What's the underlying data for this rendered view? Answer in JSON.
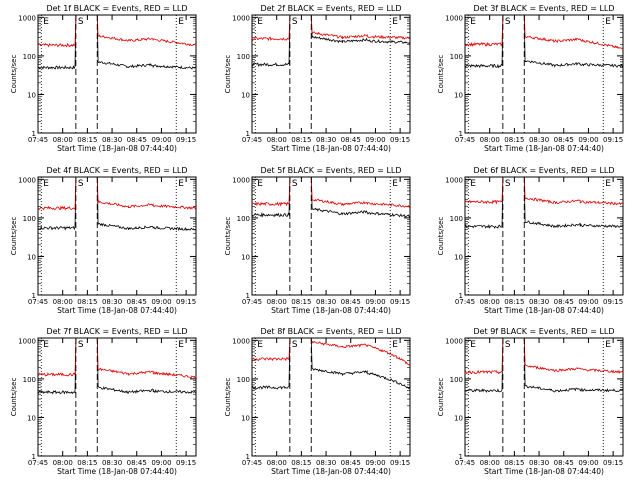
{
  "colors": {
    "events": "#000000",
    "lld": "#e00000",
    "axis": "#000000"
  },
  "shared": {
    "xlabel": "Start Time (18-Jan-08 07:44:40)",
    "ylabel": "Counts/sec",
    "x_tick_labels": [
      "07:45",
      "08:00",
      "08:15",
      "08:30",
      "08:45",
      "09:00",
      "09:15"
    ],
    "y_tick_labels": [
      "1",
      "10",
      "100",
      "1000"
    ],
    "marker_labels": [
      "E",
      "S",
      "E"
    ]
  },
  "chart_data": [
    {
      "type": "line",
      "title": "Det 1f BLACK = Events, RED = LLD",
      "series": [
        {
          "name": "Events",
          "color": "#000000",
          "values": {
            "pre": 50,
            "post": 70,
            "tail": 48
          }
        },
        {
          "name": "LLD",
          "color": "#e00000",
          "values": {
            "pre": 190,
            "post": 330,
            "tail": 190
          }
        }
      ]
    },
    {
      "type": "line",
      "title": "Det 2f BLACK = Events, RED = LLD",
      "series": [
        {
          "name": "Events",
          "color": "#000000",
          "values": {
            "pre": 60,
            "post": 310,
            "tail": 220
          }
        },
        {
          "name": "LLD",
          "color": "#e00000",
          "values": {
            "pre": 280,
            "post": 400,
            "tail": 290
          }
        }
      ]
    },
    {
      "type": "line",
      "title": "Det 3f BLACK = Events, RED = LLD",
      "series": [
        {
          "name": "Events",
          "color": "#000000",
          "values": {
            "pre": 55,
            "post": 75,
            "tail": 55
          }
        },
        {
          "name": "LLD",
          "color": "#e00000",
          "values": {
            "pre": 200,
            "post": 320,
            "tail": 150
          }
        }
      ]
    },
    {
      "type": "line",
      "title": "Det 4f BLACK = Events, RED = LLD",
      "series": [
        {
          "name": "Events",
          "color": "#000000",
          "values": {
            "pre": 55,
            "post": 70,
            "tail": 50
          }
        },
        {
          "name": "LLD",
          "color": "#e00000",
          "values": {
            "pre": 180,
            "post": 260,
            "tail": 180
          }
        }
      ]
    },
    {
      "type": "line",
      "title": "Det 5f BLACK = Events, RED = LLD",
      "series": [
        {
          "name": "Events",
          "color": "#000000",
          "values": {
            "pre": 120,
            "post": 170,
            "tail": 110
          }
        },
        {
          "name": "LLD",
          "color": "#e00000",
          "values": {
            "pre": 230,
            "post": 300,
            "tail": 200
          }
        }
      ]
    },
    {
      "type": "line",
      "title": "Det 6f BLACK = Events, RED = LLD",
      "series": [
        {
          "name": "Events",
          "color": "#000000",
          "values": {
            "pre": 60,
            "post": 80,
            "tail": 60
          }
        },
        {
          "name": "LLD",
          "color": "#e00000",
          "values": {
            "pre": 260,
            "post": 330,
            "tail": 230
          }
        }
      ]
    },
    {
      "type": "line",
      "title": "Det 7f BLACK = Events, RED = LLD",
      "series": [
        {
          "name": "Events",
          "color": "#000000",
          "values": {
            "pre": 45,
            "post": 60,
            "tail": 45
          }
        },
        {
          "name": "LLD",
          "color": "#e00000",
          "values": {
            "pre": 130,
            "post": 180,
            "tail": 110
          }
        }
      ]
    },
    {
      "type": "line",
      "title": "Det 8f BLACK = Events, RED = LLD",
      "series": [
        {
          "name": "Events",
          "color": "#000000",
          "values": {
            "pre": 60,
            "post": 180,
            "tail": 55
          }
        },
        {
          "name": "LLD",
          "color": "#e00000",
          "values": {
            "pre": 330,
            "post": 900,
            "tail": 220
          }
        }
      ]
    },
    {
      "type": "line",
      "title": "Det 9f BLACK = Events, RED = LLD",
      "series": [
        {
          "name": "Events",
          "color": "#000000",
          "values": {
            "pre": 50,
            "post": 65,
            "tail": 50
          }
        },
        {
          "name": "LLD",
          "color": "#e00000",
          "values": {
            "pre": 150,
            "post": 220,
            "tail": 150
          }
        }
      ]
    }
  ]
}
